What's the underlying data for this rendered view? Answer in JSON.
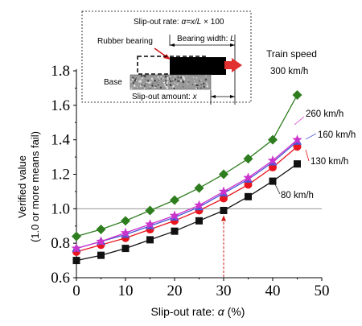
{
  "chart_data": {
    "type": "line",
    "xlabel_prefix": "Slip-out rate: ",
    "xlabel_symbol": "α",
    "xlabel_unit": " (%)",
    "ylabel_line1": "Verified value",
    "ylabel_line2": "(1.0 or more means fail)",
    "xlim": [
      0,
      50
    ],
    "ylim": [
      0.6,
      1.8
    ],
    "x_ticks": [
      0,
      10,
      20,
      30,
      40,
      50
    ],
    "y_ticks": [
      0.6,
      0.8,
      1.0,
      1.2,
      1.4,
      1.6,
      1.8
    ],
    "y_tick_labels": [
      "0.6",
      "0.8",
      "1.0",
      "1.2",
      "1.4",
      "1.6",
      "1.8"
    ],
    "x": [
      0,
      5,
      10,
      15,
      20,
      25,
      30,
      35,
      40,
      45
    ],
    "threshold": 1.0,
    "marker_annotation_x": 30,
    "legend_title": "Train speed",
    "series": [
      {
        "name": "300 km/h",
        "color": "#2e7d1f",
        "marker": "diamond",
        "values": [
          0.84,
          0.88,
          0.93,
          0.99,
          1.05,
          1.12,
          1.2,
          1.29,
          1.4,
          1.66
        ]
      },
      {
        "name": "260 km/h",
        "color": "#cc33cc",
        "marker": "star",
        "values": [
          0.77,
          0.81,
          0.86,
          0.91,
          0.96,
          1.02,
          1.1,
          1.18,
          1.28,
          1.4
        ]
      },
      {
        "name": "160 km/h",
        "color": "#4a58d6",
        "marker": "triangle",
        "values": [
          0.77,
          0.81,
          0.85,
          0.9,
          0.95,
          1.01,
          1.09,
          1.17,
          1.27,
          1.39
        ]
      },
      {
        "name": "130 km/h",
        "color": "#e8141e",
        "marker": "circle",
        "values": [
          0.75,
          0.79,
          0.83,
          0.88,
          0.93,
          0.99,
          1.06,
          1.14,
          1.24,
          1.36
        ]
      },
      {
        "name": "80 km/h",
        "color": "#111111",
        "marker": "square",
        "values": [
          0.7,
          0.73,
          0.77,
          0.82,
          0.87,
          0.93,
          0.99,
          1.07,
          1.16,
          1.26
        ]
      }
    ],
    "inset": {
      "rate_formula_prefix": "Slip-out rate: ",
      "rate_formula_var": "α=x/L",
      "rate_formula_suffix": " × 100",
      "rubber_bearing_label": "Rubber bearing",
      "bearing_width_label": "Bearing width: ",
      "bearing_width_var": "L",
      "base_label": "Base",
      "slip_amount_label": "Slip-out amount: ",
      "slip_amount_var": "x"
    }
  }
}
